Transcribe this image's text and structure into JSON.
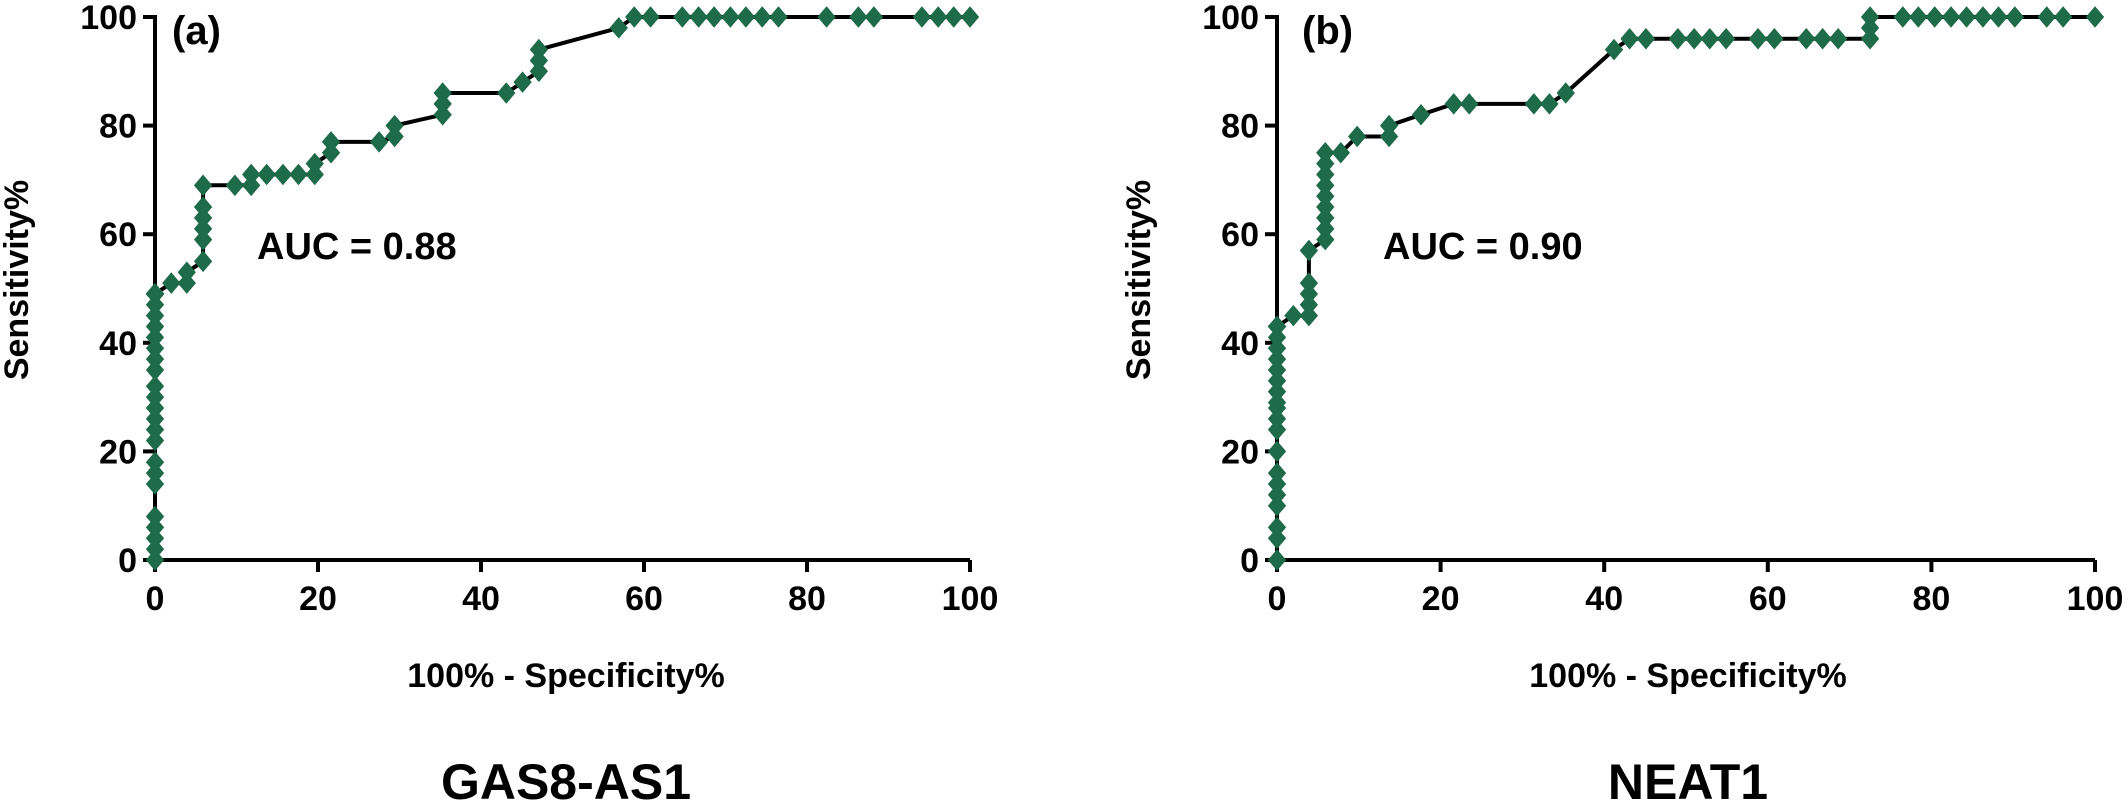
{
  "chart_data": [
    {
      "type": "line",
      "panel_label": "(a)",
      "title": "GAS8-AS1",
      "xlabel": "100% - Specificity%",
      "ylabel": "Sensitivity%",
      "annotation": "AUC = 0.88",
      "xlim": [
        0,
        100
      ],
      "ylim": [
        0,
        100
      ],
      "xticks": [
        "0",
        "20",
        "40",
        "60",
        "80",
        "100"
      ],
      "yticks": [
        "0",
        "20",
        "40",
        "60",
        "80",
        "100"
      ],
      "grid": false,
      "series_color": "#1e6b4a",
      "marker": "diamond",
      "x": [
        0,
        0,
        0,
        0,
        0,
        0,
        0,
        0,
        0,
        0,
        0,
        0,
        0,
        0,
        0,
        0,
        0,
        0,
        0,
        0,
        0,
        0,
        0,
        0,
        0,
        0,
        0,
        0,
        0,
        0,
        0,
        2,
        3.9,
        3.9,
        5.9,
        5.9,
        5.9,
        5.9,
        5.9,
        5.9,
        9.8,
        11.8,
        11.8,
        13.7,
        15.7,
        17.6,
        19.6,
        19.6,
        21.6,
        21.6,
        27.5,
        29.4,
        29.4,
        35.3,
        35.3,
        35.3,
        43.1,
        45.1,
        47.1,
        47.1,
        47.1,
        56.9,
        58.8,
        60.8,
        64.7,
        66.7,
        68.6,
        70.6,
        72.5,
        74.5,
        76.5,
        82.4,
        86.3,
        88.2,
        94.1,
        96.1,
        98,
        100
      ],
      "y": [
        0,
        2,
        4,
        6,
        8,
        14,
        16,
        18,
        22,
        24,
        26,
        28,
        30,
        32,
        35,
        37,
        39,
        41,
        43,
        45,
        47,
        49,
        49,
        49,
        49,
        49,
        49,
        49,
        49,
        49,
        49,
        51,
        51,
        53,
        55,
        59,
        61,
        63,
        65,
        69,
        69,
        69,
        71,
        71,
        71,
        71,
        71,
        73,
        75,
        77,
        77,
        78,
        80,
        82,
        84,
        86,
        86,
        88,
        90,
        92,
        94,
        98,
        100,
        100,
        100,
        100,
        100,
        100,
        100,
        100,
        100,
        100,
        100,
        100,
        100,
        100,
        100,
        100
      ]
    },
    {
      "type": "line",
      "panel_label": "(b)",
      "title": "NEAT1",
      "xlabel": "100% - Specificity%",
      "ylabel": "Sensitivity%",
      "annotation": "AUC = 0.90",
      "xlim": [
        0,
        100
      ],
      "ylim": [
        0,
        100
      ],
      "xticks": [
        "0",
        "20",
        "40",
        "60",
        "80",
        "100"
      ],
      "yticks": [
        "0",
        "20",
        "40",
        "60",
        "80",
        "100"
      ],
      "grid": false,
      "series_color": "#1e6b4a",
      "marker": "diamond",
      "x": [
        0,
        0,
        0,
        0,
        0,
        0,
        0,
        0,
        0,
        0,
        0,
        0,
        0,
        0,
        0,
        0,
        0,
        0,
        0,
        0,
        0,
        0,
        2,
        3.9,
        3.9,
        3.9,
        3.9,
        3.9,
        5.9,
        5.9,
        5.9,
        5.9,
        5.9,
        5.9,
        5.9,
        5.9,
        5.9,
        7.8,
        9.8,
        13.7,
        13.7,
        17.6,
        21.6,
        23.5,
        31.4,
        33.3,
        35.3,
        41.2,
        43.1,
        45.1,
        49,
        51,
        52.9,
        54.9,
        58.8,
        60.8,
        64.7,
        66.7,
        68.6,
        72.5,
        72.5,
        72.5,
        76.5,
        78.4,
        80.4,
        82.4,
        84.3,
        86.3,
        88.2,
        90.2,
        94.1,
        96.1,
        100
      ],
      "y": [
        0,
        4,
        6,
        10,
        12,
        14,
        16,
        20,
        24,
        26,
        28,
        29,
        31,
        33,
        35,
        37,
        39,
        41,
        43,
        43,
        43,
        43,
        45,
        45,
        47,
        49,
        51,
        57,
        59,
        61,
        63,
        65,
        67,
        69,
        71,
        73,
        75,
        75,
        78,
        78,
        80,
        82,
        84,
        84,
        84,
        84,
        86,
        94,
        96,
        96,
        96,
        96,
        96,
        96,
        96,
        96,
        96,
        96,
        96,
        96,
        98,
        100,
        100,
        100,
        100,
        100,
        100,
        100,
        100,
        100,
        100,
        100,
        100
      ]
    }
  ]
}
